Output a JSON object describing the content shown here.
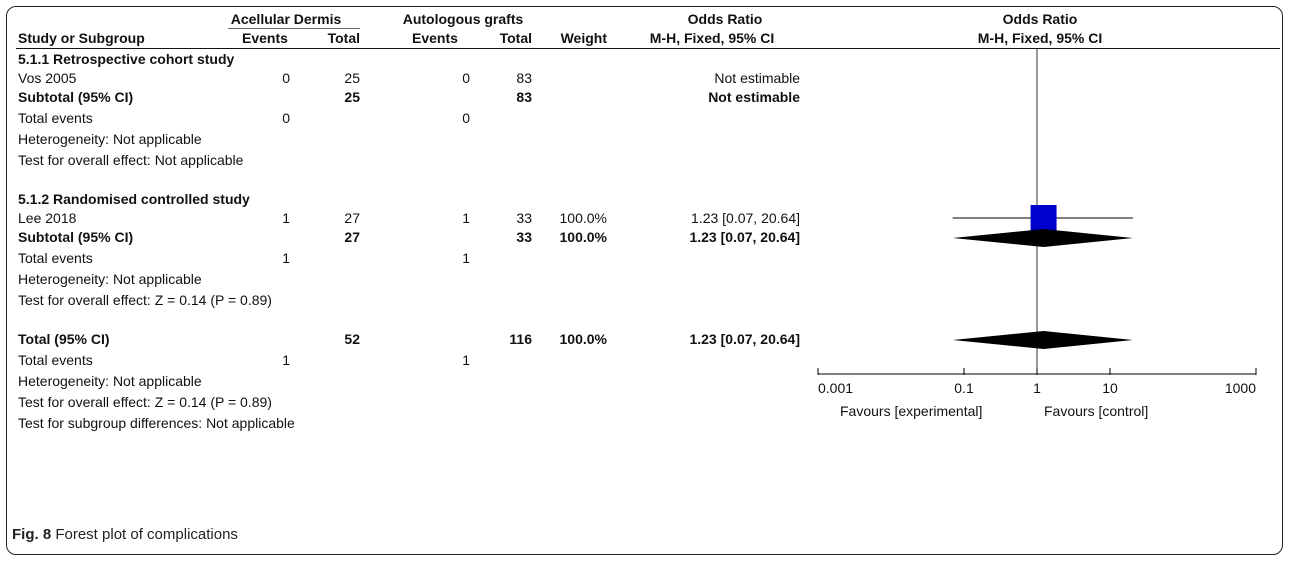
{
  "chart_data": {
    "type": "forest",
    "header": {
      "group1": "Acellular Dermis",
      "group2": "Autologous grafts",
      "or_col_title": "Odds Ratio",
      "or_col_sub": "M-H, Fixed, 95% CI",
      "plot_title": "Odds Ratio",
      "plot_sub": "M-H, Fixed, 95% CI",
      "study_col": "Study or Subgroup",
      "events": "Events",
      "total": "Total",
      "weight": "Weight"
    },
    "subgroups": [
      {
        "title": "5.1.1 Retrospective cohort study",
        "studies": [
          {
            "name": "Vos 2005",
            "e1": "0",
            "t1": "25",
            "e2": "0",
            "t2": "83",
            "weight": "",
            "ci_text": "Not estimable"
          }
        ],
        "subtotal": {
          "label": "Subtotal (95% CI)",
          "t1": "25",
          "t2": "83",
          "weight": "",
          "ci_text": "Not estimable"
        },
        "total_events": {
          "label": "Total events",
          "e1": "0",
          "e2": "0"
        },
        "heterogeneity": "Heterogeneity: Not applicable",
        "overall": "Test for overall effect: Not applicable"
      },
      {
        "title": "5.1.2 Randomised controlled study",
        "studies": [
          {
            "name": "Lee 2018",
            "e1": "1",
            "t1": "27",
            "e2": "1",
            "t2": "33",
            "weight": "100.0%",
            "ci_text": "1.23 [0.07, 20.64]",
            "or": 1.23,
            "lo": 0.07,
            "hi": 20.64
          }
        ],
        "subtotal": {
          "label": "Subtotal (95% CI)",
          "t1": "27",
          "t2": "33",
          "weight": "100.0%",
          "ci_text": "1.23 [0.07, 20.64]",
          "or": 1.23,
          "lo": 0.07,
          "hi": 20.64
        },
        "total_events": {
          "label": "Total events",
          "e1": "1",
          "e2": "1"
        },
        "heterogeneity": "Heterogeneity: Not applicable",
        "overall": "Test for overall effect: Z = 0.14 (P = 0.89)"
      }
    ],
    "total": {
      "label": "Total (95% CI)",
      "t1": "52",
      "t2": "116",
      "weight": "100.0%",
      "ci_text": "1.23 [0.07, 20.64]",
      "or": 1.23,
      "lo": 0.07,
      "hi": 20.64
    },
    "total_events": {
      "label": "Total events",
      "e1": "1",
      "e2": "1"
    },
    "heterogeneity": "Heterogeneity: Not applicable",
    "overall": "Test for overall effect: Z = 0.14 (P = 0.89)",
    "subgroup_diff": "Test for subgroup differences: Not applicable",
    "axis": {
      "scale": "log",
      "min": 0.001,
      "max": 1000,
      "ticks": [
        0.001,
        0.1,
        1,
        10,
        1000
      ],
      "tick_labels": [
        "0.001",
        "0.1",
        "1",
        "10",
        "1000"
      ]
    },
    "favours_left": "Favours [experimental]",
    "favours_right": "Favours [control]",
    "colors": {
      "square": "#0000cc",
      "diamond": "#000000",
      "line": "#000000"
    }
  },
  "caption": {
    "fig": "Fig. 8",
    "text": "Forest plot of complications"
  }
}
